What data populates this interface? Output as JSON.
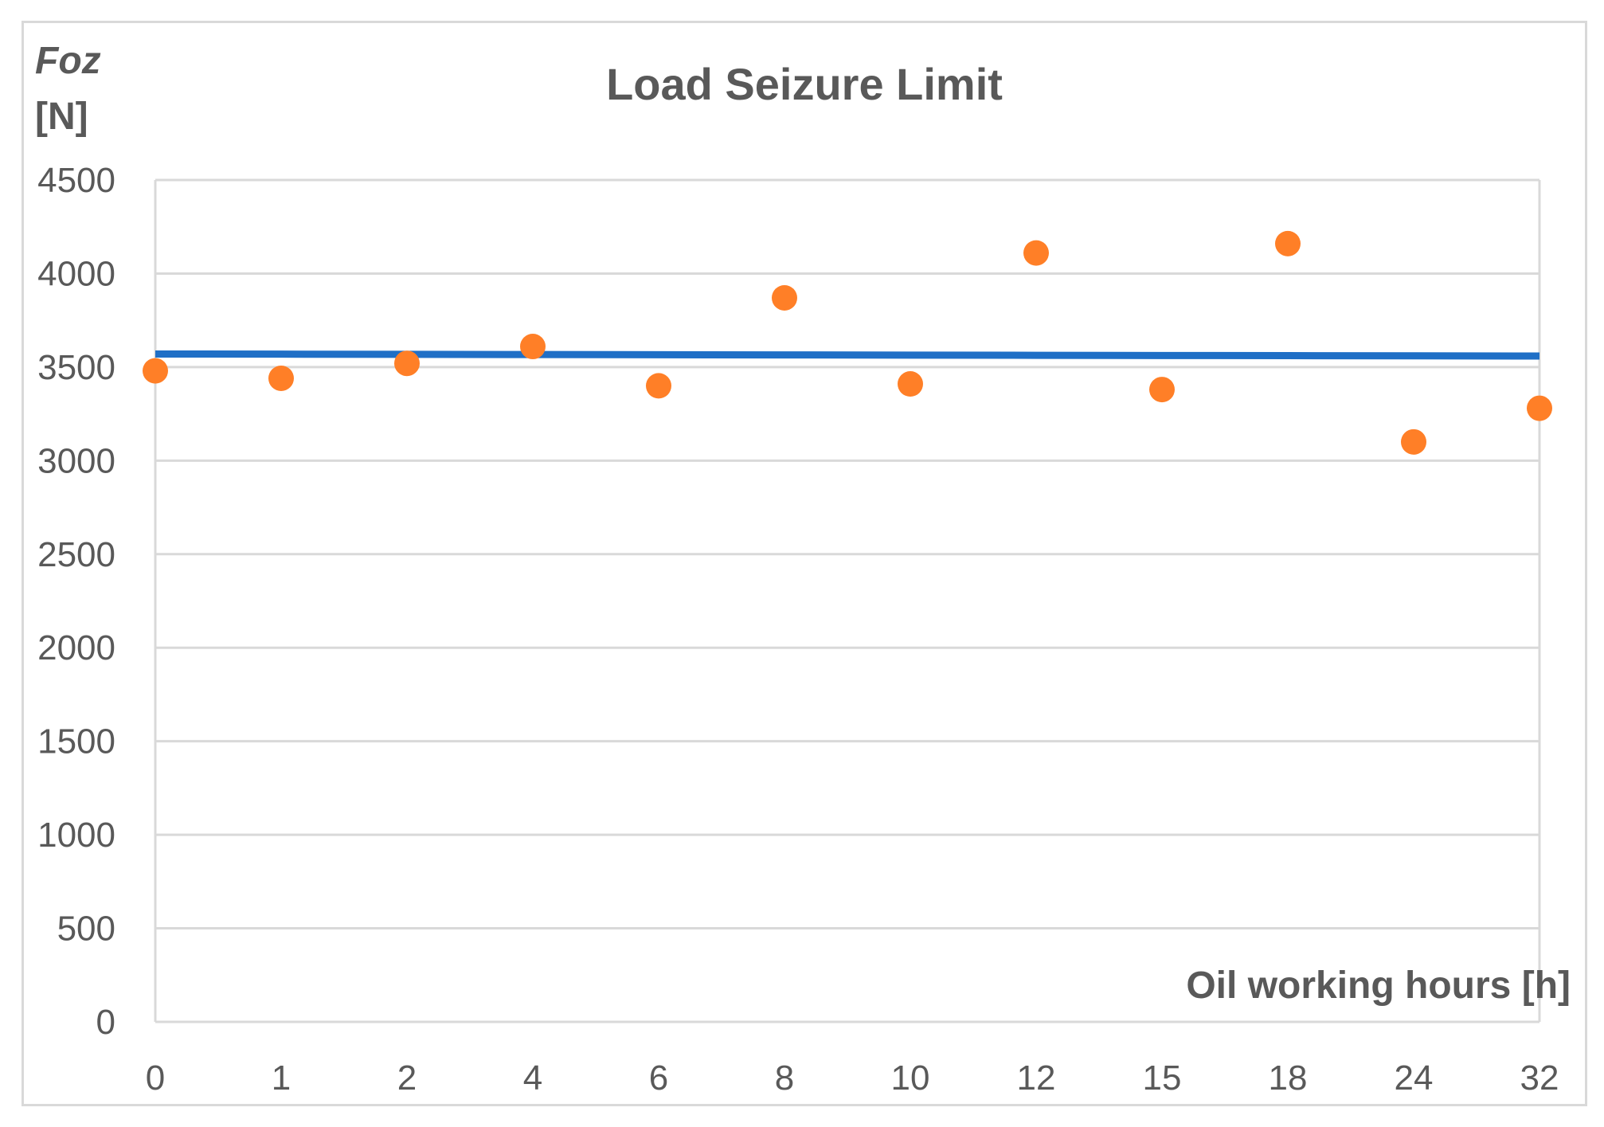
{
  "chart_data": {
    "type": "scatter",
    "title": "Load Seizure  Limit",
    "ylabel": "Foz",
    "ylabel_unit": "[N]",
    "xlabel": "Oil working hours [h]",
    "categories": [
      "0",
      "1",
      "2",
      "4",
      "6",
      "8",
      "10",
      "12",
      "15",
      "18",
      "24",
      "32"
    ],
    "ylim": [
      0,
      4500
    ],
    "yticks": [
      0,
      500,
      1000,
      1500,
      2000,
      2500,
      3000,
      3500,
      4000,
      4500
    ],
    "grid": true,
    "series": [
      {
        "kind": "scatter",
        "color": "#ff7f27",
        "values": [
          3480,
          3440,
          3520,
          3610,
          3400,
          3870,
          3410,
          4110,
          3380,
          4160,
          3100,
          3280
        ]
      },
      {
        "kind": "line",
        "color": "#1f6fc6",
        "values": [
          3570,
          3569,
          3568,
          3567,
          3566,
          3565,
          3564,
          3563,
          3562,
          3561,
          3560,
          3559
        ]
      }
    ]
  },
  "colors": {
    "gridline": "#d9d9d9",
    "text": "#595959",
    "marker": "#ff7f27",
    "trendline": "#1f6fc6"
  }
}
